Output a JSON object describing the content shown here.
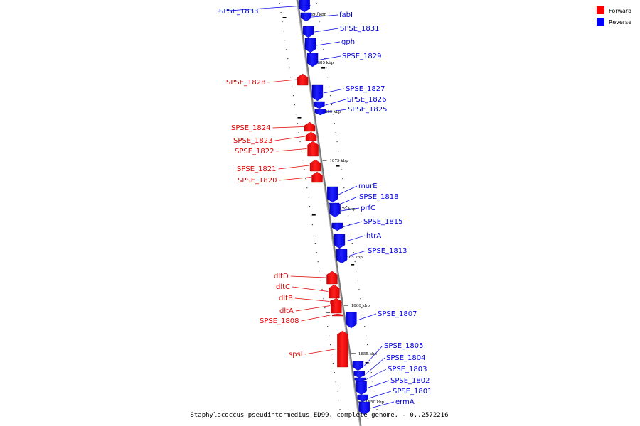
{
  "caption": "Staphylococcus pseudintermedius ED99, complete genome. - 0..2572216",
  "legend": [
    {
      "label": "Forward",
      "color": "#ff0000"
    },
    {
      "label": "Reverse",
      "color": "#0000ff"
    }
  ],
  "ticks": [
    "1890 kbp",
    "1885 kbp",
    "1880 kbp",
    "1875 kbp",
    "1870 kbp",
    "1865 kbp",
    "1860 kbp",
    "1855 kbp",
    "1850 kbp"
  ],
  "genes": [
    {
      "name": "SPSE_1833",
      "strand": "reverse"
    },
    {
      "name": "fabI",
      "strand": "reverse"
    },
    {
      "name": "SPSE_1831",
      "strand": "reverse"
    },
    {
      "name": "gph",
      "strand": "reverse"
    },
    {
      "name": "SPSE_1829",
      "strand": "reverse"
    },
    {
      "name": "SPSE_1828",
      "strand": "forward"
    },
    {
      "name": "SPSE_1827",
      "strand": "reverse"
    },
    {
      "name": "SPSE_1826",
      "strand": "reverse"
    },
    {
      "name": "SPSE_1825",
      "strand": "reverse"
    },
    {
      "name": "SPSE_1824",
      "strand": "forward"
    },
    {
      "name": "SPSE_1823",
      "strand": "forward"
    },
    {
      "name": "SPSE_1822",
      "strand": "forward"
    },
    {
      "name": "SPSE_1821",
      "strand": "forward"
    },
    {
      "name": "SPSE_1820",
      "strand": "forward"
    },
    {
      "name": "murE",
      "strand": "reverse"
    },
    {
      "name": "SPSE_1818",
      "strand": "reverse"
    },
    {
      "name": "prfC",
      "strand": "reverse"
    },
    {
      "name": "SPSE_1815",
      "strand": "reverse"
    },
    {
      "name": "htrA",
      "strand": "reverse"
    },
    {
      "name": "SPSE_1813",
      "strand": "reverse"
    },
    {
      "name": "dltD",
      "strand": "forward"
    },
    {
      "name": "dltC",
      "strand": "forward"
    },
    {
      "name": "dltB",
      "strand": "forward"
    },
    {
      "name": "dltA",
      "strand": "forward"
    },
    {
      "name": "SPSE_1808",
      "strand": "forward"
    },
    {
      "name": "SPSE_1807",
      "strand": "reverse"
    },
    {
      "name": "spsI",
      "strand": "forward"
    },
    {
      "name": "SPSE_1805",
      "strand": "reverse"
    },
    {
      "name": "SPSE_1804",
      "strand": "reverse"
    },
    {
      "name": "SPSE_1803",
      "strand": "reverse"
    },
    {
      "name": "SPSE_1802",
      "strand": "reverse"
    },
    {
      "name": "SPSE_1801",
      "strand": "reverse"
    },
    {
      "name": "ermA",
      "strand": "reverse"
    }
  ]
}
